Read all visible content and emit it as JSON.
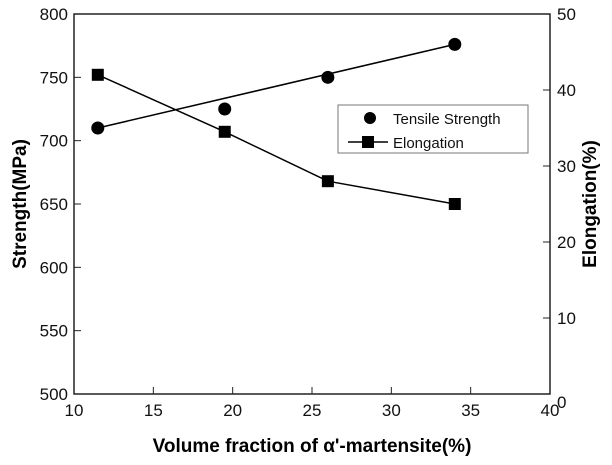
{
  "chart_data": {
    "type": "line",
    "title": "",
    "xlabel": "Volume fraction of α'-martensite(%)",
    "ylabel_left": "Strength(MPa)",
    "ylabel_right": "Elongation(%)",
    "xlim": [
      10,
      40
    ],
    "ylim_left": [
      500,
      800
    ],
    "ylim_right": [
      0,
      50
    ],
    "x_ticks": [
      "10",
      "15",
      "20",
      "25",
      "30",
      "35",
      "40"
    ],
    "y_left_ticks": [
      "500",
      "550",
      "600",
      "650",
      "700",
      "750",
      "800"
    ],
    "y_right_ticks": [
      "0",
      "10",
      "20",
      "30",
      "40",
      "50"
    ],
    "grid": false,
    "legend_position": "center-right",
    "series": [
      {
        "name": "Tensile Strength",
        "axis": "left",
        "marker": "circle",
        "x": [
          11.5,
          19.5,
          26,
          34
        ],
        "values": [
          710,
          725,
          750,
          776
        ],
        "fit_line": {
          "x": [
            11.5,
            34
          ],
          "values": [
            710,
            776
          ]
        }
      },
      {
        "name": "Elongation",
        "axis": "right",
        "marker": "square",
        "x": [
          11.5,
          19.5,
          26,
          34
        ],
        "values": [
          42,
          34.5,
          28,
          25
        ]
      }
    ]
  }
}
